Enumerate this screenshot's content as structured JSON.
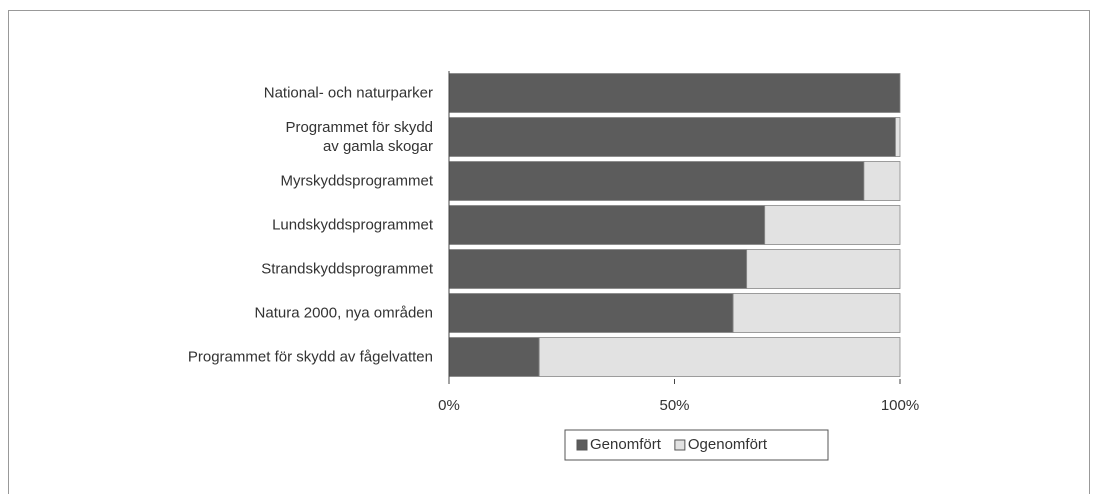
{
  "chart_data": {
    "type": "stacked_barh",
    "categories": [
      "National- och naturparker",
      "Programmet för skydd\nav gamla skogar",
      "Myrskyddsprogrammet",
      "Lundskyddsprogrammet",
      "Strandskyddsprogrammet",
      "Natura 2000, nya områden",
      "Programmet för skydd av fågelvatten"
    ],
    "series": [
      {
        "name": "Genomfört",
        "color": "#5c5c5c",
        "values": [
          100,
          99,
          92,
          70,
          66,
          63,
          20
        ]
      },
      {
        "name": "Ogenomfört",
        "color": "#e2e2e2",
        "values": [
          0,
          1,
          8,
          30,
          34,
          37,
          80
        ]
      }
    ],
    "xlim": [
      0,
      100
    ],
    "xticks": [
      {
        "value": 0,
        "label": "0%"
      },
      {
        "value": 50,
        "label": "50%"
      },
      {
        "value": 100,
        "label": "100%"
      }
    ],
    "legend": "bottom"
  }
}
